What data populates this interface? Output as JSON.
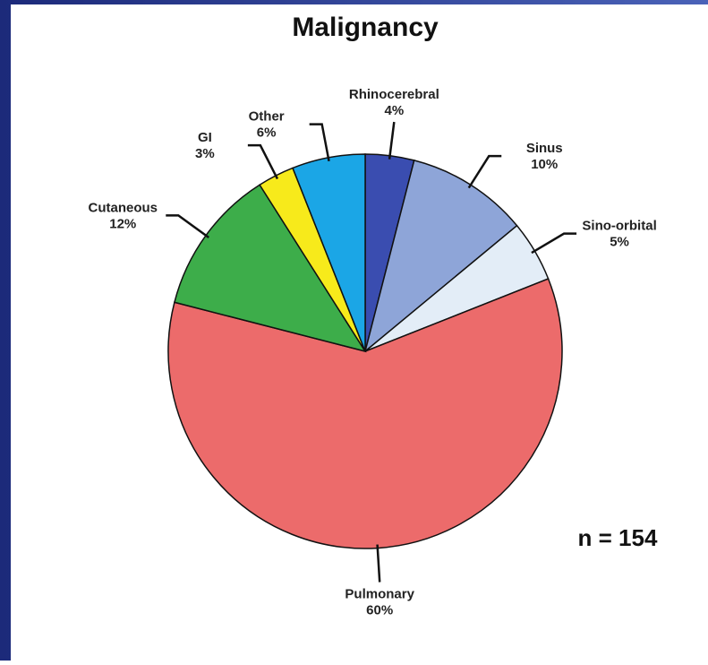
{
  "chart_data": {
    "type": "pie",
    "title": "Malignancy",
    "categories": [
      "Rhinocerebral",
      "Sinus",
      "Sino-orbital",
      "Pulmonary",
      "Cutaneous",
      "GI",
      "Other"
    ],
    "values": [
      4,
      10,
      5,
      60,
      12,
      3,
      6
    ],
    "value_labels": [
      "4%",
      "10%",
      "5%",
      "60%",
      "12%",
      "3%",
      "6%"
    ],
    "colors": [
      "#3a4db0",
      "#8ea5d8",
      "#e3edf7",
      "#ec6b6b",
      "#3dad4a",
      "#f7ea1b",
      "#1ba6e6"
    ],
    "annotation": "n = 154"
  }
}
